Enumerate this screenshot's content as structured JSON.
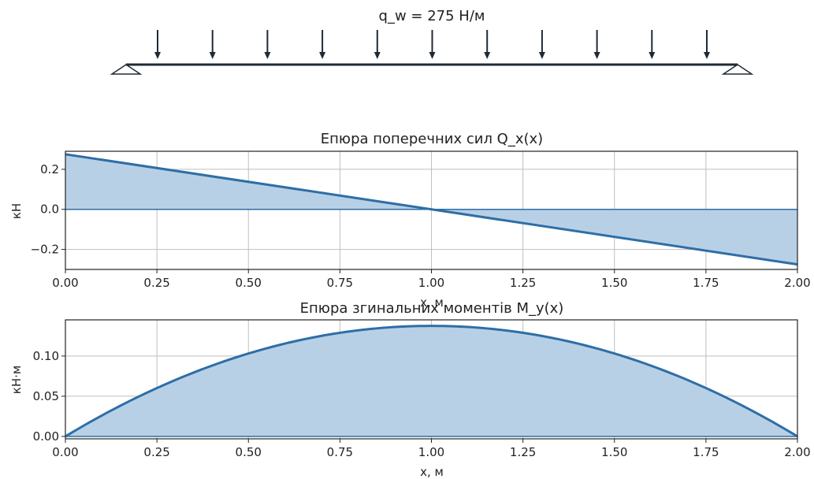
{
  "beam": {
    "load_label": "q_w = 275 Н/м",
    "arrow_count": 11
  },
  "colors": {
    "line": "#2e6ea6",
    "fill": "#b8d0e6",
    "grid": "#bfbfbf",
    "beam": "#1f2a36"
  },
  "chart_data": [
    {
      "type": "area",
      "title": "Епюра поперечних сил Q_x(x)",
      "xlabel": "x, м",
      "ylabel": "кН",
      "xlim": [
        0,
        2
      ],
      "ylim": [
        -0.3,
        0.29
      ],
      "grid": true,
      "x": [
        0,
        2
      ],
      "y": [
        0.275,
        -0.275
      ],
      "xticks": [
        "0.00",
        "0.25",
        "0.50",
        "0.75",
        "1.00",
        "1.25",
        "1.50",
        "1.75",
        "2.00"
      ],
      "yticks": [
        "−0.2",
        "0.0",
        "0.2"
      ],
      "ytick_values": [
        -0.2,
        0,
        0.2
      ]
    },
    {
      "type": "area",
      "title": "Епюра згинальних моментів M_y(x)",
      "xlabel": "x, м",
      "ylabel": "кН·м",
      "xlim": [
        0,
        2
      ],
      "ylim": [
        -0.003,
        0.145
      ],
      "grid": true,
      "function": "0.1375*x*(2-x)",
      "xticks": [
        "0.00",
        "0.25",
        "0.50",
        "0.75",
        "1.00",
        "1.25",
        "1.50",
        "1.75",
        "2.00"
      ],
      "yticks": [
        "0.00",
        "0.05",
        "0.10"
      ],
      "ytick_values": [
        0,
        0.05,
        0.1
      ]
    }
  ]
}
